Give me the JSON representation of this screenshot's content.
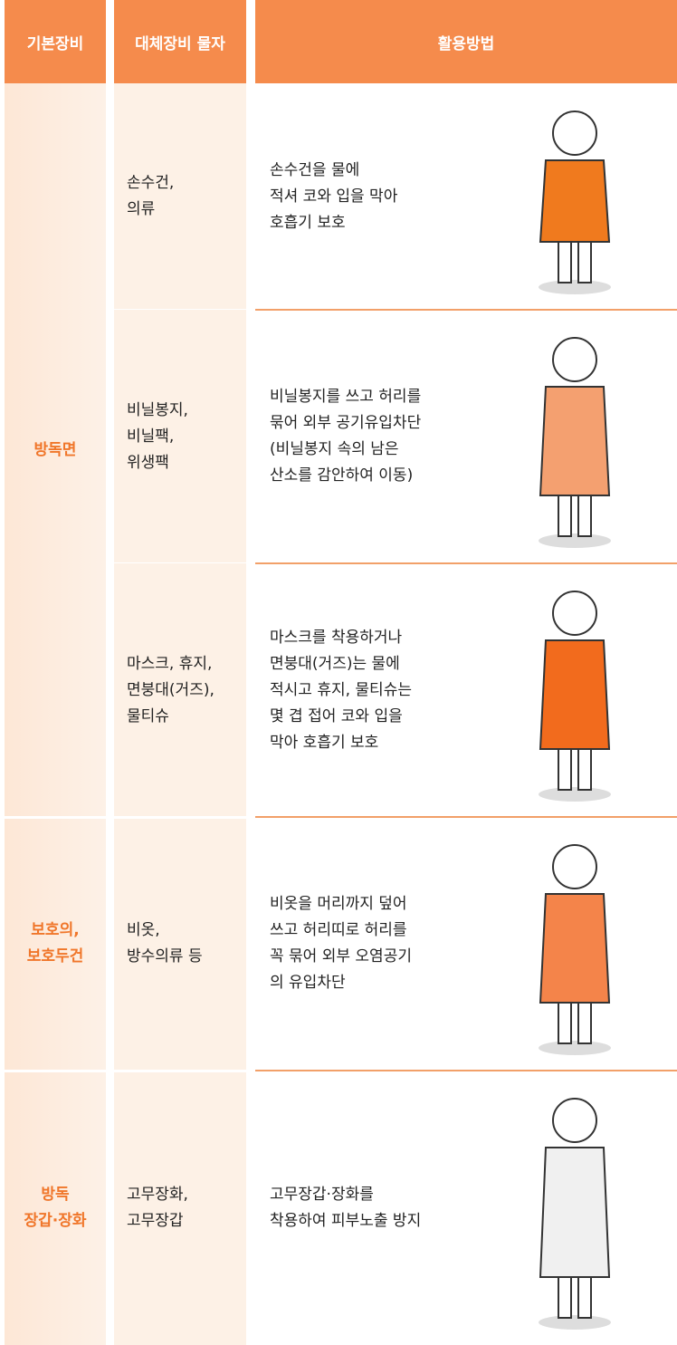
{
  "table": {
    "header": [
      "기본장비",
      "대체장비 물자",
      "활용방법"
    ],
    "groups": [
      {
        "name": [
          "방독면"
        ],
        "rows": [
          {
            "items": [
              "손수건,",
              "의류"
            ],
            "usage": [
              "손수건을 물에",
              "적셔 코와 입을 막아",
              "호흡기 보호"
            ]
          },
          {
            "items": [
              "비닐봉지,",
              "비닐팩,",
              "위생팩"
            ],
            "usage": [
              "비닐봉지를 쓰고 허리를",
              "묶어 외부 공기유입차단",
              "(비닐봉지 속의 남은",
              "산소를 감안하여 이동)"
            ]
          },
          {
            "items": [
              "마스크, 휴지,",
              "면붕대(거즈),",
              "물티슈"
            ],
            "usage": [
              "마스크를 착용하거나",
              "면붕대(거즈)는 물에",
              "적시고 휴지, 물티슈는",
              "몇 겹 접어 코와 입을",
              "막아 호흡기 보호"
            ]
          }
        ]
      },
      {
        "name": [
          "보호의,",
          "보호두건"
        ],
        "rows": [
          {
            "items": [
              "비옷,",
              "방수의류 등"
            ],
            "usage": [
              "비옷을 머리까지 덮어",
              "쓰고 허리띠로 허리를",
              "꼭 묶어 외부 오염공기",
              "의 유입차단"
            ]
          }
        ]
      },
      {
        "name": [
          "방독",
          "장갑·장화"
        ],
        "rows": [
          {
            "items": [
              "고무장화,",
              "고무장갑"
            ],
            "usage": [
              "고무장갑·장화를",
              "착용하여 피부노출 방지"
            ]
          }
        ]
      }
    ]
  }
}
